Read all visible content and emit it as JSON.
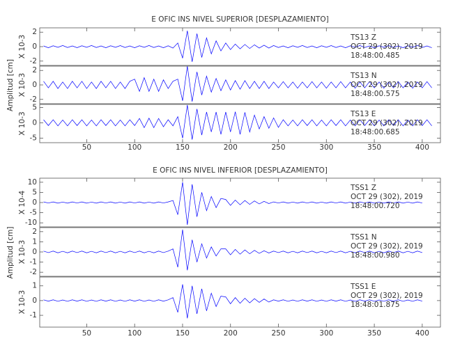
{
  "chart_data": [
    {
      "type": "line",
      "title": "E OFIC INS NIVEL SUPERIOR [DESPLAZAMIENTO]",
      "y_label": "Amplitud [cm]",
      "xlim": [
        1,
        419
      ],
      "xticks": [
        50,
        100,
        150,
        200,
        250,
        300,
        350,
        400
      ],
      "x": [
        5,
        10,
        15,
        20,
        25,
        30,
        35,
        40,
        45,
        50,
        55,
        60,
        65,
        70,
        75,
        80,
        85,
        90,
        95,
        100,
        105,
        110,
        115,
        120,
        125,
        130,
        135,
        140,
        145,
        150,
        155,
        160,
        165,
        170,
        175,
        180,
        185,
        190,
        195,
        200,
        205,
        210,
        215,
        220,
        225,
        230,
        235,
        240,
        245,
        250,
        255,
        260,
        265,
        270,
        275,
        280,
        285,
        290,
        295,
        300,
        305,
        310,
        315,
        320,
        325,
        330,
        335,
        340,
        345,
        350,
        355,
        360,
        365,
        370,
        375,
        380,
        385,
        390,
        395,
        400,
        405,
        410
      ],
      "panels": [
        {
          "station": "TS13   Z",
          "date": "OCT 29 (302), 2019",
          "time": "18:48:00.485",
          "scale": "X 10-3",
          "color": "#0000ff",
          "ylim": [
            -2.6,
            2.6
          ],
          "yticks": [
            -2,
            0,
            2
          ],
          "values": [
            0.1,
            -0.15,
            0.12,
            -0.1,
            0.15,
            -0.12,
            0.1,
            -0.14,
            0.12,
            -0.1,
            0.15,
            -0.12,
            0.1,
            -0.15,
            0.12,
            -0.1,
            0.14,
            -0.12,
            0.1,
            -0.15,
            0.12,
            -0.1,
            0.15,
            -0.12,
            0.1,
            -0.15,
            0.12,
            -0.2,
            0.5,
            -1.6,
            2.2,
            -2.1,
            1.8,
            -1.5,
            1.2,
            -1.0,
            0.8,
            -0.6,
            0.5,
            -0.4,
            0.35,
            -0.3,
            0.3,
            -0.25,
            0.25,
            -0.2,
            0.2,
            -0.2,
            0.15,
            -0.12,
            0.1,
            -0.15,
            0.12,
            -0.1,
            0.15,
            -0.12,
            0.1,
            -0.15,
            0.12,
            -0.1,
            0.14,
            -0.12,
            0.1,
            -0.15,
            0.12,
            -0.1,
            0.15,
            -0.12,
            0.1,
            -0.15,
            0.12,
            -0.1,
            0.14,
            -0.12,
            0.1,
            -0.15,
            0.12,
            -0.1,
            0.15,
            -0.12,
            0.1,
            -0.15
          ]
        },
        {
          "station": "TS13   N",
          "date": "OCT 29 (302), 2019",
          "time": "18:48:00.575",
          "scale": "X 10-3",
          "color": "#0000ff",
          "ylim": [
            -2.6,
            2.6
          ],
          "yticks": [
            -2,
            0,
            2
          ],
          "values": [
            0.5,
            -0.4,
            0.5,
            -0.5,
            0.4,
            -0.5,
            0.5,
            -0.4,
            0.5,
            -0.5,
            0.4,
            -0.5,
            0.5,
            -0.4,
            0.5,
            -0.5,
            0.4,
            -0.5,
            0.5,
            0.8,
            -0.9,
            1.0,
            -0.9,
            0.8,
            -0.9,
            0.7,
            -0.5,
            0.5,
            0.8,
            -2.2,
            2.6,
            -2.3,
            1.8,
            -1.4,
            1.2,
            -1.0,
            0.9,
            -0.8,
            0.7,
            -0.7,
            0.6,
            -0.6,
            0.6,
            -0.5,
            0.5,
            -0.5,
            0.5,
            -0.5,
            0.4,
            -0.4,
            0.45,
            -0.4,
            0.4,
            -0.45,
            0.4,
            -0.4,
            0.45,
            -0.4,
            0.4,
            -0.45,
            0.4,
            -0.4,
            0.45,
            -0.4,
            0.4,
            -0.45,
            0.4,
            -0.4,
            0.45,
            -0.4,
            0.4,
            -0.45,
            0.4,
            -0.4,
            0.45,
            -0.4,
            0.4,
            -0.45,
            0.4,
            -0.4,
            0.45,
            -0.4
          ]
        },
        {
          "station": "TS13   E",
          "date": "OCT 29 (302), 2019",
          "time": "18:48:00.685",
          "scale": "X 10-3",
          "color": "#0000ff",
          "ylim": [
            -6.5,
            6
          ],
          "yticks": [
            -5,
            0,
            5
          ],
          "values": [
            1.0,
            -0.9,
            1.0,
            -1.0,
            0.9,
            -1.0,
            1.0,
            -0.9,
            1.0,
            -1.0,
            0.9,
            -1.0,
            1.0,
            -0.9,
            1.0,
            -1.0,
            0.9,
            -1.0,
            1.0,
            -0.9,
            1.4,
            -1.6,
            1.5,
            -1.6,
            1.4,
            -1.3,
            1.0,
            -1.0,
            2.0,
            -5.0,
            5.8,
            -5.5,
            4.5,
            -4.0,
            3.5,
            -3.0,
            3.5,
            -3.8,
            3.5,
            -3.0,
            3.6,
            -3.8,
            3.4,
            -3.0,
            2.5,
            -2.0,
            2.0,
            -1.8,
            1.6,
            -1.5,
            1.0,
            -1.0,
            0.9,
            -1.0,
            1.0,
            -0.9,
            1.0,
            -1.0,
            0.9,
            -1.0,
            1.0,
            -0.9,
            1.0,
            -1.0,
            0.9,
            -1.0,
            1.0,
            -0.9,
            1.0,
            -1.0,
            0.9,
            -1.0,
            1.0,
            -0.9,
            1.0,
            -1.0,
            0.9,
            -1.0,
            1.0,
            -0.9,
            1.0,
            -1.0
          ]
        }
      ]
    },
    {
      "type": "line",
      "title": "E OFIC INS NIVEL INFERIOR [DESPLAZAMIENTO]",
      "y_label": "Amplitud [cm]",
      "xlim": [
        1,
        419
      ],
      "xticks": [
        50,
        100,
        150,
        200,
        250,
        300,
        350,
        400
      ],
      "x": [
        5,
        10,
        15,
        20,
        25,
        30,
        35,
        40,
        45,
        50,
        55,
        60,
        65,
        70,
        75,
        80,
        85,
        90,
        95,
        100,
        105,
        110,
        115,
        120,
        125,
        130,
        135,
        140,
        145,
        150,
        155,
        160,
        165,
        170,
        175,
        180,
        185,
        190,
        195,
        200,
        205,
        210,
        215,
        220,
        225,
        230,
        235,
        240,
        245,
        250,
        255,
        260,
        265,
        270,
        275,
        280,
        285,
        290,
        295,
        300,
        305,
        310,
        315,
        320,
        325,
        330,
        335,
        340,
        345,
        350,
        355,
        360,
        365,
        370,
        375,
        380,
        385,
        390,
        395,
        400,
        405,
        410
      ],
      "panels": [
        {
          "station": "TSS1   Z",
          "date": "OCT 29 (302), 2019",
          "time": "18:48:00.720",
          "scale": "X 10-4",
          "color": "#0000ff",
          "ylim": [
            -12,
            12
          ],
          "yticks": [
            -10,
            -5,
            0,
            5,
            10
          ],
          "values": [
            0.3,
            -0.25,
            0.3,
            -0.3,
            0.25,
            -0.3,
            0.3,
            -0.25,
            0.3,
            -0.3,
            0.25,
            -0.3,
            0.3,
            -0.25,
            0.3,
            -0.3,
            0.25,
            -0.3,
            0.3,
            -0.25,
            0.3,
            -0.3,
            0.25,
            -0.3,
            0.3,
            -0.25,
            0.3,
            1.0,
            -6.0,
            10.0,
            -11.0,
            9.0,
            -7.0,
            5.0,
            -4.0,
            3.0,
            -2.5,
            2.0,
            1.5,
            -1.4,
            1.2,
            -1.1,
            1.0,
            -0.9,
            0.8,
            -0.7,
            0.6,
            -0.5,
            0.3,
            -0.25,
            0.3,
            -0.3,
            0.25,
            -0.3,
            0.3,
            -0.25,
            0.3,
            -0.3,
            0.25,
            -0.3,
            0.3,
            -0.25,
            0.3,
            -0.3,
            0.25,
            -0.3,
            0.3,
            -0.25,
            0.3,
            -0.3,
            0.25,
            -0.3,
            0.3,
            -0.25,
            0.3,
            -0.3,
            0.25,
            -0.3,
            0.3,
            -0.25
          ]
        },
        {
          "station": "TSS1   N",
          "date": "OCT 29 (302), 2019",
          "time": "18:48:00.980",
          "scale": "X 10-3",
          "color": "#0000ff",
          "ylim": [
            -2.4,
            2.4
          ],
          "yticks": [
            -2,
            -1,
            0,
            1,
            2
          ],
          "values": [
            0.08,
            -0.06,
            0.08,
            -0.08,
            0.06,
            -0.08,
            0.08,
            -0.06,
            0.08,
            -0.08,
            0.06,
            -0.08,
            0.08,
            -0.06,
            0.08,
            -0.08,
            0.06,
            -0.08,
            0.08,
            -0.06,
            0.08,
            -0.08,
            0.06,
            -0.08,
            0.08,
            -0.06,
            0.08,
            0.3,
            -1.5,
            2.2,
            -1.8,
            1.2,
            -1.0,
            0.8,
            -0.6,
            0.5,
            -0.4,
            0.3,
            0.3,
            -0.28,
            0.25,
            -0.22,
            0.2,
            -0.18,
            0.16,
            -0.14,
            0.12,
            -0.1,
            0.08,
            -0.06,
            0.08,
            -0.08,
            0.06,
            -0.08,
            0.08,
            -0.06,
            0.08,
            -0.08,
            0.06,
            -0.08,
            0.08,
            -0.06,
            0.08,
            -0.08,
            0.06,
            -0.08,
            0.08,
            -0.06,
            0.08,
            -0.08,
            0.06,
            -0.08,
            0.08,
            -0.06,
            0.08,
            -0.08,
            0.06,
            -0.08,
            0.08,
            -0.06
          ]
        },
        {
          "station": "TSS1   E",
          "date": "OCT 29 (302), 2019",
          "time": "18:48:01.875",
          "scale": "X 10-3",
          "color": "#0000ff",
          "ylim": [
            -1.8,
            1.6
          ],
          "yticks": [
            -1,
            0,
            1
          ],
          "values": [
            0.05,
            -0.04,
            0.05,
            -0.05,
            0.04,
            -0.05,
            0.05,
            -0.04,
            0.05,
            -0.05,
            0.04,
            -0.05,
            0.05,
            -0.04,
            0.05,
            -0.05,
            0.04,
            -0.05,
            0.05,
            -0.04,
            0.05,
            -0.05,
            0.04,
            -0.05,
            0.05,
            -0.04,
            0.05,
            0.2,
            -0.8,
            1.1,
            -1.2,
            1.0,
            -0.9,
            0.8,
            -0.7,
            0.5,
            -0.4,
            0.3,
            0.25,
            -0.22,
            0.2,
            -0.18,
            0.16,
            -0.15,
            0.13,
            -0.12,
            0.11,
            -0.1,
            0.05,
            -0.04,
            0.05,
            -0.05,
            0.04,
            -0.05,
            0.05,
            -0.04,
            0.05,
            -0.05,
            0.04,
            -0.05,
            0.05,
            -0.04,
            0.05,
            -0.05,
            0.04,
            -0.05,
            0.05,
            -0.04,
            0.05,
            -0.05,
            0.04,
            -0.05,
            0.05,
            -0.04,
            0.05,
            -0.05,
            0.04,
            -0.05,
            0.05,
            -0.04
          ]
        }
      ]
    }
  ]
}
